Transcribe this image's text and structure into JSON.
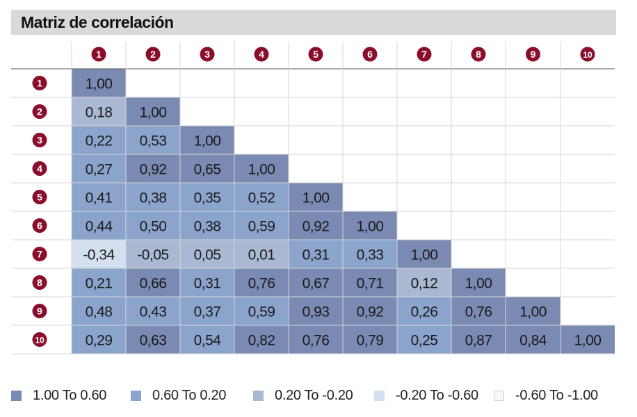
{
  "title": "Matriz de correlación",
  "chart_data": {
    "type": "heatmap",
    "title": "Matriz de correlación",
    "row_labels": [
      "1",
      "2",
      "3",
      "4",
      "5",
      "6",
      "7",
      "8",
      "9",
      "10"
    ],
    "col_labels": [
      "1",
      "2",
      "3",
      "4",
      "5",
      "6",
      "7",
      "8",
      "9",
      "10"
    ],
    "values": [
      [
        "1,00"
      ],
      [
        "0,18",
        "1,00"
      ],
      [
        "0,22",
        "0,53",
        "1,00"
      ],
      [
        "0,27",
        "0,92",
        "0,65",
        "1,00"
      ],
      [
        "0,41",
        "0,38",
        "0,35",
        "0,52",
        "1,00"
      ],
      [
        "0,44",
        "0,50",
        "0,38",
        "0,59",
        "0,92",
        "1,00"
      ],
      [
        "-0,34",
        "-0,05",
        "0,05",
        "0,01",
        "0,31",
        "0,33",
        "1,00"
      ],
      [
        "0,21",
        "0,66",
        "0,31",
        "0,76",
        "0,67",
        "0,71",
        "0,12",
        "1,00"
      ],
      [
        "0,48",
        "0,43",
        "0,37",
        "0,59",
        "0,93",
        "0,92",
        "0,26",
        "0,76",
        "1,00"
      ],
      [
        "0,29",
        "0,63",
        "0,54",
        "0,82",
        "0,76",
        "0,79",
        "0,25",
        "0,87",
        "0,84",
        "1,00"
      ]
    ],
    "legend": [
      {
        "label": "1.00 To 0.60",
        "color": "#7b8ab3"
      },
      {
        "label": "0.60 To 0.20",
        "color": "#8aa4cc"
      },
      {
        "label": "0.20 To -0.20",
        "color": "#aab8d2"
      },
      {
        "label": "-0.20 To -0.60",
        "color": "#d4e0ef"
      },
      {
        "label": "-0.60 To -1.00",
        "color": "#f7f8fc"
      }
    ],
    "badge_color": "#8b0d2c",
    "grid": true
  }
}
